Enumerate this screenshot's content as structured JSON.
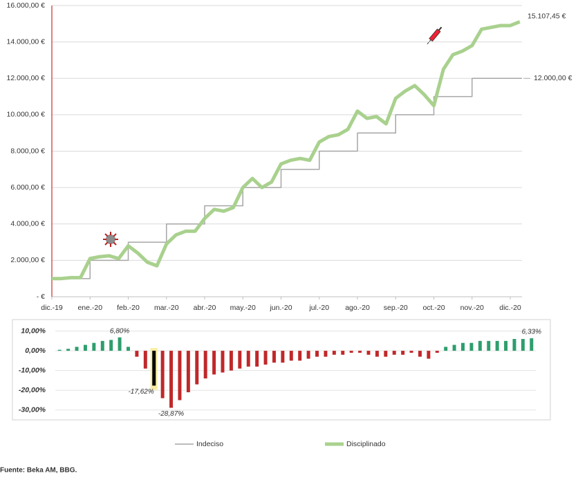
{
  "chart_data": [
    {
      "type": "line",
      "categories": [
        "dic.-19",
        null,
        null,
        null,
        "ene.-20",
        null,
        null,
        null,
        "feb.-20",
        null,
        null,
        null,
        "mar.-20",
        null,
        null,
        null,
        "abr.-20",
        null,
        null,
        null,
        "may.-20",
        null,
        null,
        null,
        "jun.-20",
        null,
        null,
        null,
        "jul.-20",
        null,
        null,
        null,
        "ago.-20",
        null,
        null,
        null,
        "sep.-20",
        null,
        null,
        null,
        "oct.-20",
        null,
        null,
        null,
        "nov.-20",
        null,
        null,
        null,
        "dic.-20",
        null
      ],
      "series": [
        {
          "name": "Indeciso",
          "color": "#a6a6a6",
          "step": true,
          "values": [
            1000,
            1000,
            1000,
            1000,
            2000,
            2000,
            2000,
            2000,
            3000,
            3000,
            3000,
            3000,
            4000,
            4000,
            4000,
            4000,
            5000,
            5000,
            5000,
            5000,
            6000,
            6000,
            6000,
            6000,
            7000,
            7000,
            7000,
            7000,
            8000,
            8000,
            8000,
            8000,
            9000,
            9000,
            9000,
            9000,
            10000,
            10000,
            10000,
            10000,
            11000,
            11000,
            11000,
            11000,
            12000,
            12000,
            12000,
            12000,
            12000,
            12000
          ],
          "value_labels": [
            null,
            null,
            null,
            null,
            null,
            null,
            null,
            null,
            null,
            null,
            null,
            null,
            null,
            null,
            null,
            null,
            null,
            null,
            null,
            null,
            null,
            null,
            null,
            null,
            null,
            null,
            null,
            null,
            null,
            null,
            null,
            null,
            null,
            null,
            null,
            null,
            null,
            null,
            null,
            null,
            null,
            null,
            null,
            null,
            null,
            null,
            null,
            null,
            null,
            "12.000,00 €"
          ]
        },
        {
          "name": "Disciplinado",
          "color": "#a9d18e",
          "step": false,
          "values": [
            1000,
            1000,
            1050,
            1050,
            2100,
            2200,
            2250,
            2100,
            2800,
            2400,
            1900,
            1700,
            2900,
            3400,
            3600,
            3600,
            4300,
            4800,
            4700,
            4900,
            6000,
            6500,
            6000,
            6300,
            7300,
            7500,
            7600,
            7500,
            8500,
            8800,
            8900,
            9200,
            10200,
            9800,
            9900,
            9500,
            10900,
            11300,
            11600,
            11100,
            10500,
            12500,
            13300,
            13500,
            13800,
            14700,
            14800,
            14900,
            14900,
            15107.45
          ],
          "value_labels": [
            null,
            null,
            null,
            null,
            null,
            null,
            null,
            null,
            null,
            null,
            null,
            null,
            null,
            null,
            null,
            null,
            null,
            null,
            null,
            null,
            null,
            null,
            null,
            null,
            null,
            null,
            null,
            null,
            null,
            null,
            null,
            null,
            null,
            null,
            null,
            null,
            null,
            null,
            null,
            null,
            null,
            null,
            null,
            null,
            null,
            null,
            null,
            null,
            null,
            "15.107,45 €"
          ]
        }
      ],
      "ylim": [
        0,
        16000
      ],
      "yticks": [
        {
          "value": 0,
          "label": "-  €"
        },
        {
          "value": 2000,
          "label": "2.000,00 €"
        },
        {
          "value": 4000,
          "label": "4.000,00 €"
        },
        {
          "value": 6000,
          "label": "6.000,00 €"
        },
        {
          "value": 8000,
          "label": "8.000,00 €"
        },
        {
          "value": 10000,
          "label": "10.000,00 €"
        },
        {
          "value": 12000,
          "label": "12.000,00 €"
        },
        {
          "value": 14000,
          "label": "14.000,00 €"
        },
        {
          "value": 16000,
          "label": "16.000,00 €"
        }
      ],
      "grid": true,
      "legend": "bottom",
      "source": "Fuente: Beka AM, BBG."
    },
    {
      "type": "bar",
      "values": [
        0.5,
        1,
        2,
        3,
        4,
        5,
        5.5,
        6.8,
        2,
        -3,
        -9,
        -17.62,
        -24,
        -28.87,
        -25,
        -21,
        -17,
        -14,
        -12,
        -11,
        -10,
        -9,
        -8,
        -8,
        -7,
        -6,
        -6,
        -5,
        -5,
        -4,
        -3,
        -3,
        -2,
        -2,
        -1,
        -1,
        -2,
        -3,
        -3,
        -2,
        -2,
        -1,
        -3,
        -4,
        -1,
        2,
        3,
        4,
        4,
        5,
        5,
        5,
        5,
        6,
        6,
        6.33
      ],
      "value_labels": [
        null,
        null,
        null,
        null,
        null,
        null,
        null,
        "6,80%",
        null,
        null,
        null,
        "-17,62%",
        null,
        "-28,87%",
        null,
        null,
        null,
        null,
        null,
        null,
        null,
        null,
        null,
        null,
        null,
        null,
        null,
        null,
        null,
        null,
        null,
        null,
        null,
        null,
        null,
        null,
        null,
        null,
        null,
        null,
        null,
        null,
        null,
        null,
        null,
        null,
        null,
        null,
        null,
        null,
        null,
        null,
        null,
        null,
        null,
        "6,33%"
      ],
      "positive_color": "#2e9e6e",
      "negative_color": "#c0282a",
      "highlight_color": "#000000",
      "highlight_band_color": "#f5e88a",
      "highlight_value_label": "-17,62%",
      "ylim": [
        -35,
        13
      ],
      "yticks": [
        {
          "value": 10,
          "label": "10,00%"
        },
        {
          "value": 0,
          "label": "0,00%"
        },
        {
          "value": -10,
          "label": "-10,00%"
        },
        {
          "value": -20,
          "label": "-20,00%"
        },
        {
          "value": -30,
          "label": "-30,00%"
        }
      ]
    }
  ]
}
